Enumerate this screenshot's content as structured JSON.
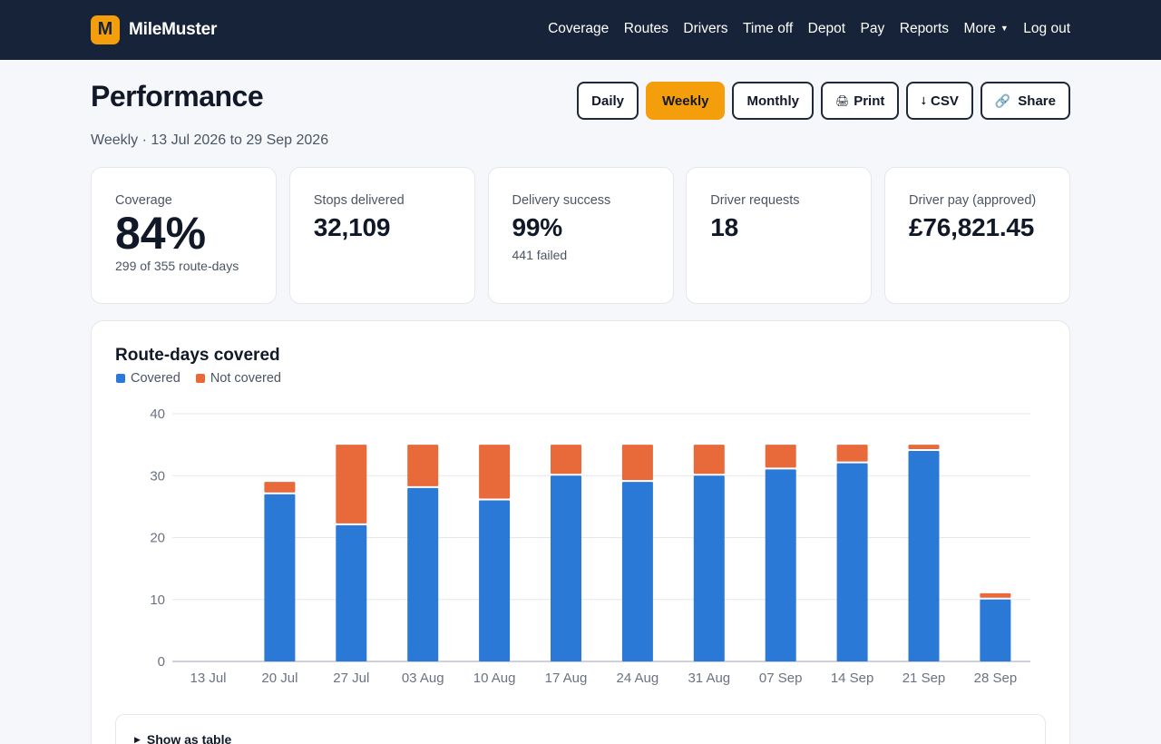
{
  "brand": {
    "logo_letter": "M",
    "name": "MileMuster"
  },
  "nav": {
    "items": [
      "Coverage",
      "Routes",
      "Drivers",
      "Time off",
      "Depot",
      "Pay",
      "Reports",
      "More"
    ],
    "logout": "Log out"
  },
  "header": {
    "title": "Performance",
    "subtitle": "Weekly · 13 Jul 2026 to 29 Sep 2026"
  },
  "controls": {
    "daily": "Daily",
    "weekly": "Weekly",
    "monthly": "Monthly",
    "print": "Print",
    "csv": "CSV",
    "share": "Share",
    "selected": "Weekly"
  },
  "kpis": {
    "coverage": {
      "label": "Coverage",
      "value": "84%",
      "sub": "299 of 355 route-days"
    },
    "stops": {
      "label": "Stops delivered",
      "value": "32,109"
    },
    "success": {
      "label": "Delivery success",
      "value": "99%",
      "sub": "441 failed"
    },
    "requests": {
      "label": "Driver requests",
      "value": "18"
    },
    "pay": {
      "label": "Driver pay (approved)",
      "value": "£76,821.45"
    }
  },
  "details": {
    "summary": "Show as table"
  },
  "chart_data": {
    "type": "bar",
    "stacked": true,
    "title": "Route-days covered",
    "categories": [
      "13 Jul",
      "20 Jul",
      "27 Jul",
      "03 Aug",
      "10 Aug",
      "17 Aug",
      "24 Aug",
      "31 Aug",
      "07 Sep",
      "14 Sep",
      "21 Sep",
      "28 Sep"
    ],
    "series": [
      {
        "name": "Covered",
        "color": "#2b79d6",
        "values": [
          0,
          27,
          22,
          28,
          26,
          30,
          29,
          30,
          31,
          32,
          34,
          10
        ]
      },
      {
        "name": "Not covered",
        "color": "#e8693a",
        "values": [
          0,
          2,
          13,
          7,
          9,
          5,
          6,
          5,
          4,
          3,
          1,
          1
        ]
      }
    ],
    "ylim": [
      0,
      40
    ],
    "yticks": [
      0,
      10,
      20,
      30,
      40
    ],
    "grid": true,
    "legend": "top-left"
  }
}
